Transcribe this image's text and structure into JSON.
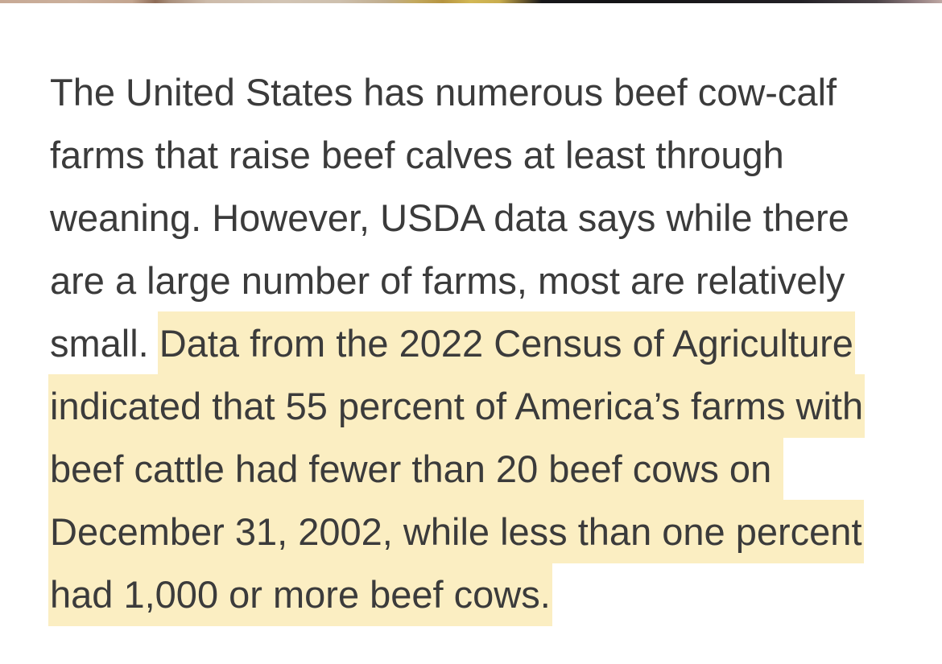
{
  "colors": {
    "highlight": "#fbeec2",
    "text": "#3b3b3b"
  },
  "content": {
    "lines": [
      {
        "plain": "The United States has numerous beef cow-calf"
      },
      {
        "plain": "farms that raise beef calves at least through"
      },
      {
        "plain": "weaning. However, USDA data says while there"
      },
      {
        "plain": "are a large number of farms, most are relatively"
      },
      {
        "plain": "small. ",
        "highlight": "Data from the 2022 Census of Agriculture"
      },
      {
        "highlight": "indicated that 55 percent of America’s farms with"
      },
      {
        "highlight": "beef cattle had fewer than 20 beef cows on "
      },
      {
        "highlight": "December 31, 2002, while less than one percent"
      },
      {
        "highlight": "had 1,000 or more beef cows."
      }
    ]
  }
}
